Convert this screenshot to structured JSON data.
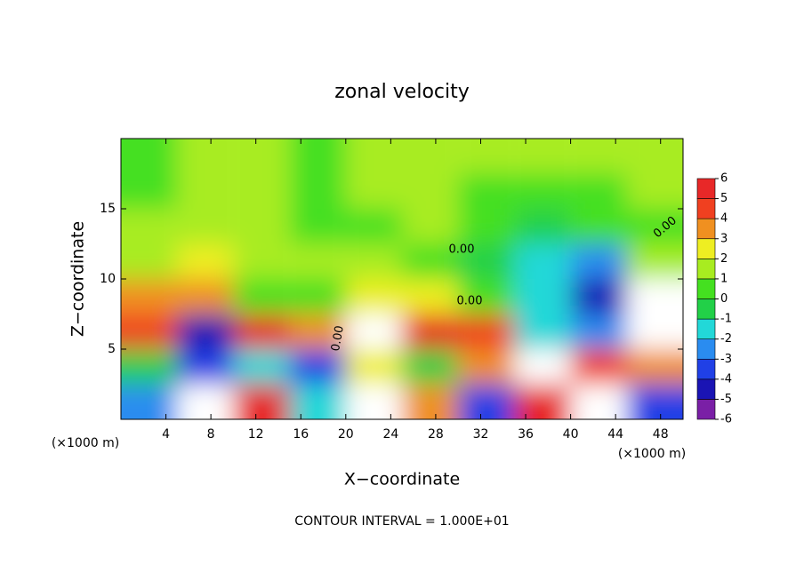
{
  "chart_data": {
    "type": "heatmap",
    "title": "zonal velocity",
    "x_label": "X−coordinate",
    "y_label": "Z−coordinate",
    "x_unit_label": "(×1000 m)",
    "y_unit_label": "(×1000 m)",
    "footnote": "CONTOUR INTERVAL = 1.000E+01",
    "annotations": [
      "0.00",
      "0.00",
      "0.00",
      "0.00"
    ],
    "x": [
      2.5,
      7.5,
      12.5,
      17.5,
      22.5,
      27.5,
      32.5,
      37.5,
      42.5,
      47.5
    ],
    "y": [
      1.25,
      3.75,
      6.25,
      8.75,
      11.25,
      13.75,
      16.25,
      18.75
    ],
    "z": [
      [
        -3,
        8,
        5,
        -2,
        8,
        3,
        -4,
        5,
        8,
        -4
      ],
      [
        -1,
        -4,
        -2,
        -4,
        2,
        -1,
        3,
        7,
        4,
        3
      ],
      [
        4,
        -5,
        5,
        3,
        7,
        5,
        4,
        -2,
        -3,
        8
      ],
      [
        3,
        3,
        0,
        0,
        2,
        2,
        0,
        -2,
        -5,
        7
      ],
      [
        1,
        2,
        1,
        1,
        1,
        0,
        -1,
        -2,
        -3,
        1
      ],
      [
        1,
        1,
        1,
        0,
        0,
        1,
        0,
        -1,
        0,
        0
      ],
      [
        0,
        1,
        1,
        0,
        1,
        1,
        0,
        0,
        0,
        1
      ],
      [
        0,
        1,
        1,
        0,
        1,
        1,
        1,
        1,
        1,
        1
      ]
    ],
    "xlim": [
      0,
      50
    ],
    "ylim": [
      0,
      20
    ],
    "xticks": [
      4,
      8,
      12,
      16,
      20,
      24,
      28,
      32,
      36,
      40,
      44,
      48
    ],
    "yticks": [
      5,
      10,
      15
    ],
    "colorbar_levels": [
      -6,
      -5,
      -4,
      -3,
      -2,
      -1,
      0,
      1,
      2,
      3,
      4,
      5,
      6
    ],
    "colorbar_colors": [
      "#7a1fa6",
      "#1a14b4",
      "#2040e6",
      "#2a8cf0",
      "#22d8d8",
      "#22d048",
      "#44e020",
      "#a8ec20",
      "#eeee22",
      "#f09020",
      "#f04020",
      "#e82828",
      "#f5a2a2"
    ],
    "out_of_range_color": "#ffffff"
  }
}
